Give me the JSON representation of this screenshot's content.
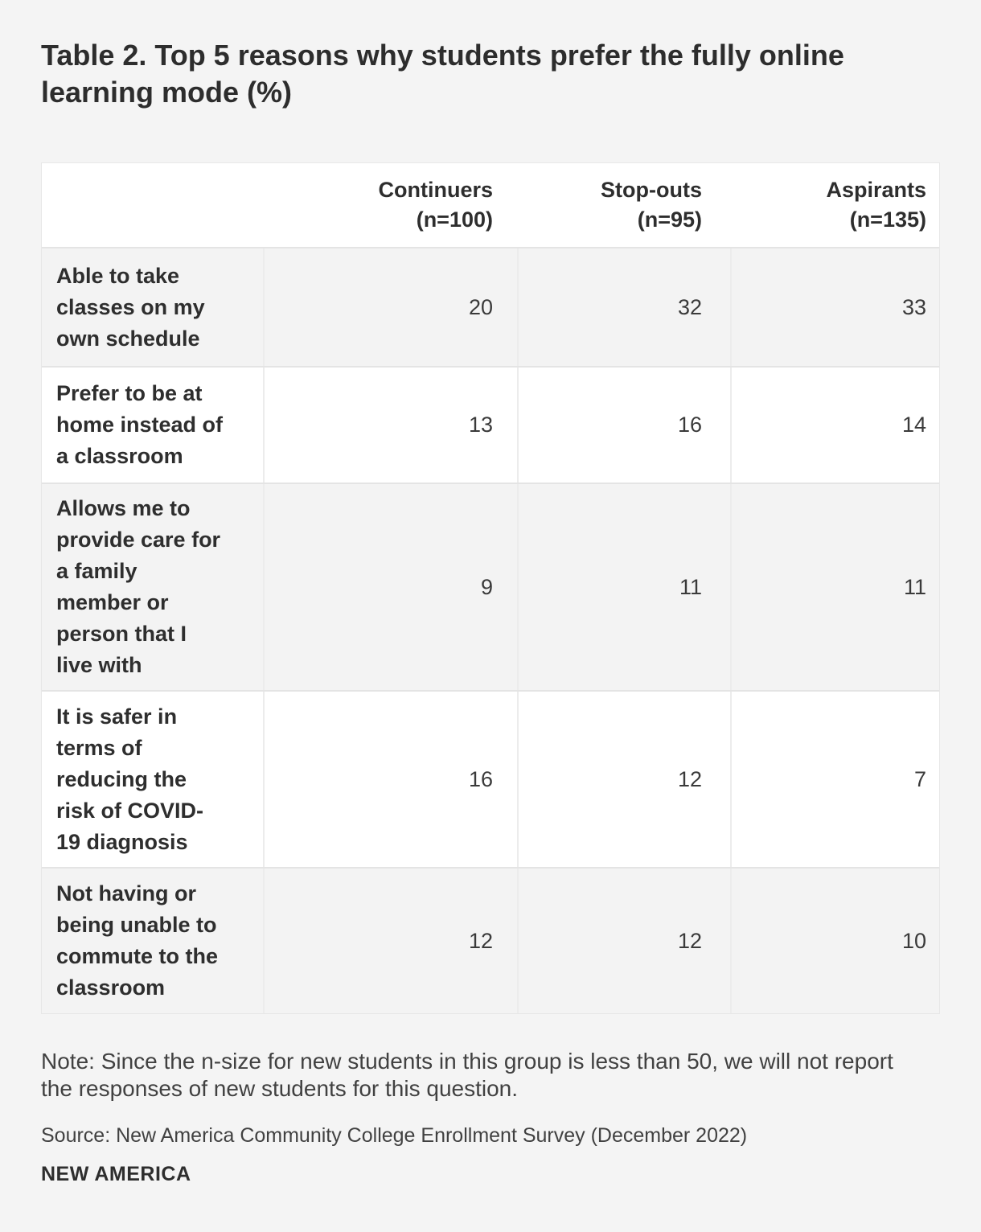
{
  "title": "Table 2. Top 5 reasons why students prefer the fully online learning mode (%)",
  "table": {
    "headers": [
      {
        "line1": "Continuers",
        "line2": "(n=100)"
      },
      {
        "line1": "Stop-outs",
        "line2": "(n=95)"
      },
      {
        "line1": "Aspirants",
        "line2": "(n=135)"
      }
    ]
  },
  "chart_data": {
    "type": "table",
    "title": "Table 2. Top 5 reasons why students prefer the fully online learning mode (%)",
    "columns": [
      "Continuers (n=100)",
      "Stop-outs (n=95)",
      "Aspirants (n=135)"
    ],
    "rows": [
      {
        "label": "Able to take classes on my own schedule",
        "values": [
          20,
          32,
          33
        ]
      },
      {
        "label": "Prefer to be at home instead of a classroom",
        "values": [
          13,
          16,
          14
        ]
      },
      {
        "label": "Allows me to provide care for a family member or person that I live with",
        "values": [
          9,
          11,
          11
        ]
      },
      {
        "label": "It is safer in terms of reducing the risk of COVID-19 diagnosis",
        "values": [
          16,
          12,
          7
        ]
      },
      {
        "label": "Not having or being unable to commute to the classroom",
        "values": [
          12,
          12,
          10
        ]
      }
    ]
  },
  "footer": {
    "note": "Note: Since the n-size for new students in this group is less than 50, we will not report the responses of new students for this question.",
    "source": "Source: New America Community College Enrollment Survey (December 2022)",
    "brand": "NEW AMERICA"
  },
  "colors": {
    "page_bg": "#f4f4f4",
    "header_bg": "#ffffff",
    "row_alt_bg": "#f3f3f3",
    "row_bg": "#ffffff",
    "row_border": "#e4e4e4",
    "column_divider": "#ececec",
    "text_dark": "#2e2e2e",
    "text_value": "#3a3a3a"
  }
}
